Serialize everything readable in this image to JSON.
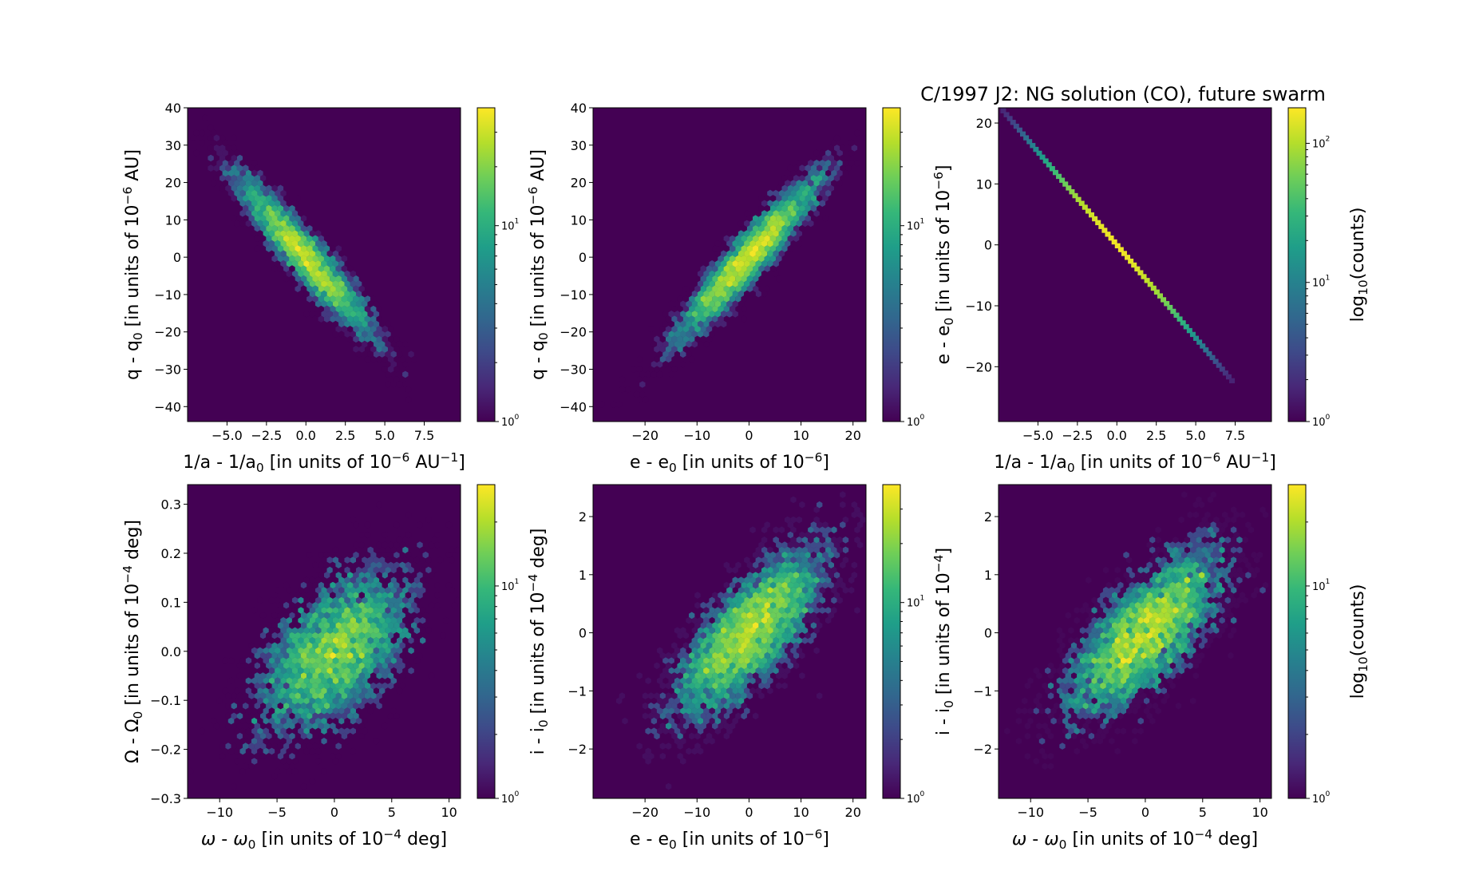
{
  "figure": {
    "title": "C/1997 J2:  NG solution (CO), future swarm",
    "colormap": [
      "#440154",
      "#482878",
      "#3e4a89",
      "#31688e",
      "#26828e",
      "#1f9e89",
      "#35b779",
      "#6ece58",
      "#b5de2b",
      "#fde725"
    ],
    "background_color": "#440154",
    "line_color": "#2a788e"
  },
  "chart_data": [
    {
      "type": "hexbin",
      "xlabel": "1/a - 1/a<sub>0</sub> [in units of 10<sup>−6</sup> AU<sup>−1</sup>]",
      "ylabel": "q - q<sub>0</sub> [in units of 10<sup>−6</sup> AU]",
      "xlim": [
        -7.5,
        9.8
      ],
      "ylim": [
        -44,
        40
      ],
      "xticks": [
        -5.0,
        -2.5,
        0.0,
        2.5,
        5.0,
        7.5
      ],
      "xtick_labels": [
        "−5.0",
        "−2.5",
        "0.0",
        "2.5",
        "5.0",
        "7.5"
      ],
      "yticks": [
        -40,
        -30,
        -20,
        -10,
        0,
        10,
        20,
        30,
        40
      ],
      "ytick_labels": [
        "−40",
        "−30",
        "−20",
        "−10",
        "0",
        "10",
        "20",
        "30",
        "40"
      ],
      "distribution": {
        "center": [
          0,
          0
        ],
        "sd": [
          2.2,
          11
        ],
        "correlation": -0.94,
        "n_points": 5000
      },
      "colorbar": {
        "scale": "log",
        "min": 1,
        "max": 40,
        "ticks": [
          1,
          10
        ],
        "tick_labels": [
          "10<sup>0</sup>",
          "10<sup>1</sup>"
        ],
        "label": ""
      }
    },
    {
      "type": "hexbin",
      "xlabel": "e - e<sub>0</sub> [in units of 10<sup>−6</sup>]",
      "ylabel": "q - q<sub>0</sub> [in units of 10<sup>−6</sup> AU]",
      "xlim": [
        -30,
        22.5
      ],
      "ylim": [
        -44,
        40
      ],
      "xticks": [
        -20,
        -10,
        0,
        10,
        20
      ],
      "xtick_labels": [
        "−20",
        "−10",
        "0",
        "10",
        "20"
      ],
      "yticks": [
        -40,
        -30,
        -20,
        -10,
        0,
        10,
        20,
        30,
        40
      ],
      "ytick_labels": [
        "−40",
        "−30",
        "−20",
        "−10",
        "0",
        "10",
        "20",
        "30",
        "40"
      ],
      "distribution": {
        "center": [
          0,
          0
        ],
        "sd": [
          7,
          11
        ],
        "correlation": 0.94,
        "n_points": 5000
      },
      "colorbar": {
        "scale": "log",
        "min": 1,
        "max": 40,
        "ticks": [
          1,
          10
        ],
        "tick_labels": [
          "10<sup>0</sup>",
          "10<sup>1</sup>"
        ],
        "label": ""
      }
    },
    {
      "type": "hexbin",
      "xlabel": "1/a - 1/a<sub>0</sub> [in units of 10<sup>−6</sup> AU<sup>−1</sup>]",
      "ylabel": "e - e<sub>0</sub> [in units of 10<sup>−6</sup>]",
      "xlim": [
        -7.5,
        9.8
      ],
      "ylim": [
        -29,
        22.5
      ],
      "xticks": [
        -5.0,
        -2.5,
        0.0,
        2.5,
        5.0,
        7.5
      ],
      "xtick_labels": [
        "−5.0",
        "−2.5",
        "0.0",
        "2.5",
        "5.0",
        "7.5"
      ],
      "yticks": [
        -20,
        -10,
        0,
        10,
        20
      ],
      "ytick_labels": [
        "−20",
        "−10",
        "0",
        "10",
        "20"
      ],
      "line": {
        "x": [
          -7.2,
          7.3
        ],
        "y": [
          22,
          -22.3
        ],
        "sd": 2.2
      },
      "colorbar": {
        "scale": "log",
        "min": 1,
        "max": 180,
        "ticks": [
          1,
          10,
          100
        ],
        "tick_labels": [
          "10<sup>0</sup>",
          "10<sup>1</sup>",
          "10<sup>2</sup>"
        ],
        "label": "log<sub>10</sub>(counts)"
      }
    },
    {
      "type": "hexbin",
      "xlabel": "<tspan font-style=\"italic\">ω</tspan> - <tspan font-style=\"italic\">ω</tspan><sub>0</sub> [in units of 10<sup>−4</sup> deg]",
      "ylabel": "Ω - Ω<sub>0</sub> [in units of 10<sup>−4</sup> deg]",
      "xlim": [
        -12.8,
        11
      ],
      "ylim": [
        -0.3,
        0.34
      ],
      "xticks": [
        -10,
        -5,
        0,
        5,
        10
      ],
      "xtick_labels": [
        "−10",
        "−5",
        "0",
        "5",
        "10"
      ],
      "yticks": [
        -0.3,
        -0.2,
        -0.1,
        0.0,
        0.1,
        0.2,
        0.3
      ],
      "ytick_labels": [
        "−0.3",
        "−0.2",
        "−0.1",
        "0.0",
        "0.1",
        "0.2",
        "0.3"
      ],
      "distribution": {
        "center": [
          0,
          0
        ],
        "sd": [
          3.4,
          0.085
        ],
        "correlation": 0.55,
        "n_points": 5000
      },
      "colorbar": {
        "scale": "log",
        "min": 1,
        "max": 30,
        "ticks": [
          1,
          10
        ],
        "tick_labels": [
          "10<sup>0</sup>",
          "10<sup>1</sup>"
        ],
        "label": ""
      }
    },
    {
      "type": "hexbin",
      "xlabel": "e - e<sub>0</sub> [in units of 10<sup>−6</sup>]",
      "ylabel": "i - i<sub>0</sub> [in units of 10<sup>−4</sup> deg]",
      "xlim": [
        -30,
        22.5
      ],
      "ylim": [
        -2.85,
        2.55
      ],
      "xticks": [
        -20,
        -10,
        0,
        10,
        20
      ],
      "xtick_labels": [
        "−20",
        "−10",
        "0",
        "10",
        "20"
      ],
      "yticks": [
        -2,
        -1,
        0,
        1,
        2
      ],
      "ytick_labels": [
        "−2",
        "−1",
        "0",
        "1",
        "2"
      ],
      "distribution": {
        "center": [
          0,
          0
        ],
        "sd": [
          7,
          0.72
        ],
        "correlation": 0.75,
        "n_points": 5000
      },
      "colorbar": {
        "scale": "log",
        "min": 1,
        "max": 40,
        "ticks": [
          1,
          10
        ],
        "tick_labels": [
          "10<sup>0</sup>",
          "10<sup>1</sup>"
        ],
        "label": ""
      }
    },
    {
      "type": "hexbin",
      "xlabel": "<tspan font-style=\"italic\">ω</tspan> - <tspan font-style=\"italic\">ω</tspan><sub>0</sub> [in units of 10<sup>−4</sup> deg]",
      "ylabel": "i - i<sub>0</sub> [in units of 10<sup>−4</sup>]",
      "xlim": [
        -12.8,
        11
      ],
      "ylim": [
        -2.85,
        2.55
      ],
      "xticks": [
        -10,
        -5,
        0,
        5,
        10
      ],
      "xtick_labels": [
        "−10",
        "−5",
        "0",
        "5",
        "10"
      ],
      "yticks": [
        -2,
        -1,
        0,
        1,
        2
      ],
      "ytick_labels": [
        "−2",
        "−1",
        "0",
        "1",
        "2"
      ],
      "distribution": {
        "center": [
          0,
          0
        ],
        "sd": [
          3.4,
          0.72
        ],
        "correlation": 0.72,
        "n_points": 5000
      },
      "colorbar": {
        "scale": "log",
        "min": 1,
        "max": 30,
        "ticks": [
          1,
          10
        ],
        "tick_labels": [
          "10<sup>0</sup>",
          "10<sup>1</sup>"
        ],
        "label": "log<sub>10</sub>(counts)"
      }
    }
  ]
}
